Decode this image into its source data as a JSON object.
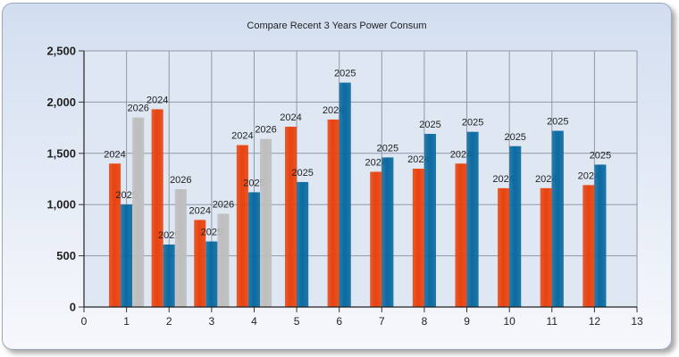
{
  "chart_data": {
    "type": "bar",
    "title": "Compare Recent 3 Years Power Consum",
    "xlabel": "",
    "ylabel": "",
    "x": [
      1,
      2,
      3,
      4,
      5,
      6,
      7,
      8,
      9,
      10,
      11,
      12
    ],
    "xlim": [
      0,
      13
    ],
    "ylim": [
      0,
      2500
    ],
    "x_ticks": [
      "0",
      "1",
      "2",
      "3",
      "4",
      "5",
      "6",
      "7",
      "8",
      "9",
      "10",
      "11",
      "12",
      "13"
    ],
    "y_ticks": [
      "0",
      "500",
      "1,000",
      "1,500",
      "2,000",
      "2,500"
    ],
    "y_tick_values": [
      0,
      500,
      1000,
      1500,
      2000,
      2500
    ],
    "grid": true,
    "legend": "none",
    "series": [
      {
        "label": "2024",
        "color": "#e8430f",
        "values": [
          1400,
          1930,
          850,
          1580,
          1760,
          1830,
          1320,
          1350,
          1400,
          1160,
          1160,
          1190
        ]
      },
      {
        "label": "2025",
        "color": "#0b6aa0",
        "values": [
          1000,
          610,
          640,
          1120,
          1220,
          2190,
          1460,
          1690,
          1710,
          1570,
          1720,
          1390
        ]
      },
      {
        "label": "2026",
        "color": "#bebebe",
        "values": [
          1850,
          1150,
          910,
          1640,
          null,
          null,
          null,
          null,
          null,
          null,
          null,
          null
        ]
      }
    ]
  }
}
